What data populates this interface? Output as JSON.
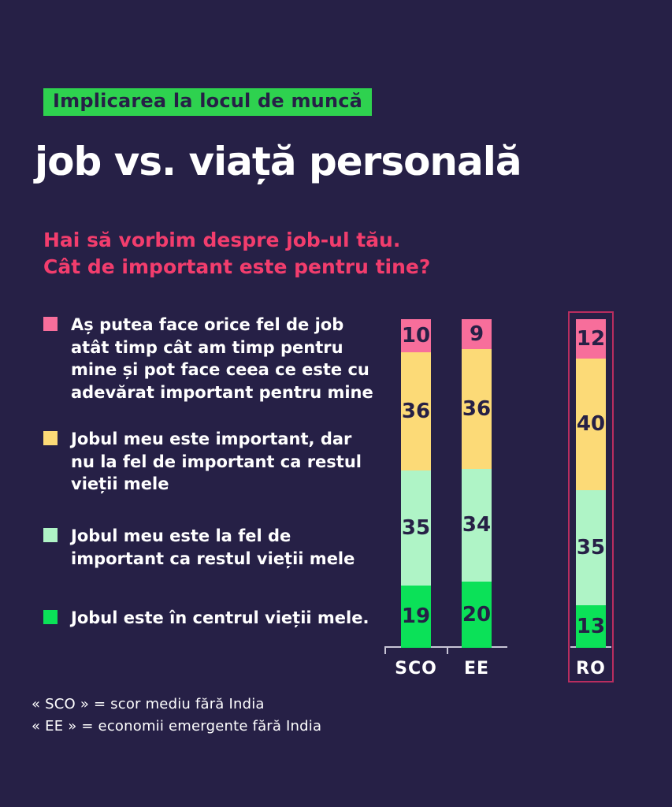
{
  "page": {
    "badge": "Implicarea la locul de muncă",
    "title": "job vs. viață personală",
    "subtitle_lines": [
      "Hai să vorbim despre job-ul tău.",
      "Cât de important este pentru tine?"
    ]
  },
  "colors": {
    "background": "#262046",
    "badge_green": "#2ED24F",
    "subtitle_pink": "#F23D6D",
    "segment_pink": "#F76E9B",
    "segment_yellow": "#FCDA77",
    "segment_mint": "#AFF4C6",
    "segment_green": "#0BE158",
    "highlight_box_border": "#B92D5F",
    "dark_text": "#262046"
  },
  "legend": {
    "items": [
      {
        "swatch_color": "#F76E9B",
        "label": "Aș putea face orice fel de job atât timp cât am timp pentru mine și pot face ceea ce este cu adevărat important pentru mine"
      },
      {
        "swatch_color": "#FCDA77",
        "label": "Jobul meu este important, dar nu la fel de important ca restul vieții mele"
      },
      {
        "swatch_color": "#AFF4C6",
        "label": "Jobul meu este la fel de important ca restul vieții mele"
      },
      {
        "swatch_color": "#0BE158",
        "label": "Jobul este în centrul vieții mele."
      }
    ]
  },
  "chart_data": {
    "type": "bar",
    "stacked": true,
    "orientation": "vertical",
    "unit": "percent",
    "value_labels": true,
    "categories": [
      "SCO",
      "EE",
      "RO"
    ],
    "series": [
      {
        "name": "Aș putea face orice fel de job atât timp cât am timp pentru mine și pot face ceea ce este cu adevărat important pentru mine",
        "color": "#F76E9B",
        "values": [
          10,
          9,
          12
        ]
      },
      {
        "name": "Jobul meu este important, dar nu la fel de important ca restul vieții mele",
        "color": "#FCDA77",
        "values": [
          36,
          36,
          40
        ]
      },
      {
        "name": "Jobul meu este la fel de important ca restul vieții mele",
        "color": "#AFF4C6",
        "values": [
          35,
          34,
          35
        ]
      },
      {
        "name": "Jobul este în centrul vieții mele.",
        "color": "#0BE158",
        "values": [
          19,
          20,
          13
        ]
      }
    ],
    "highlighted_category": "RO"
  },
  "footnotes": [
    "« SCO » = scor mediu fără India",
    "« EE » = economii emergente fără India"
  ]
}
